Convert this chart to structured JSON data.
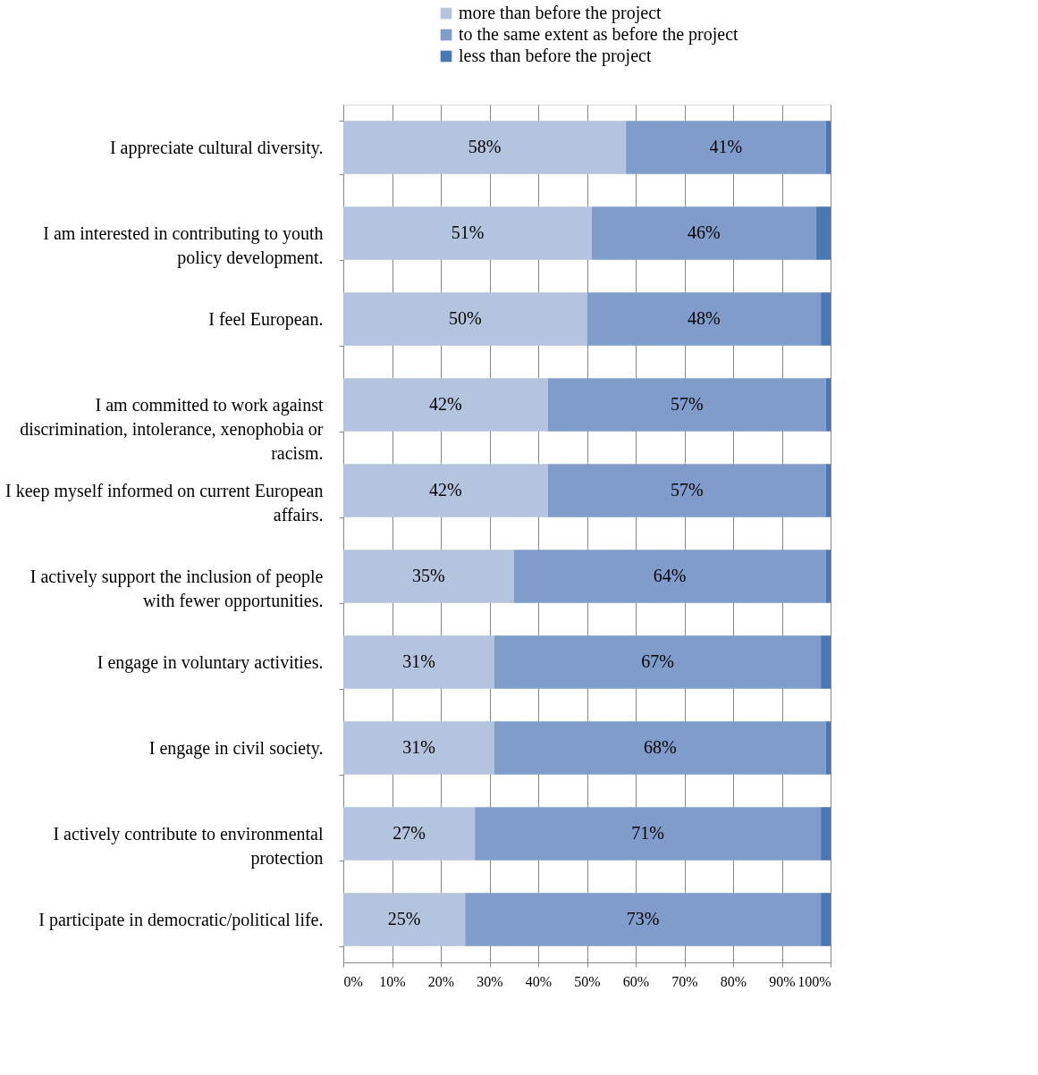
{
  "chart_data": {
    "type": "bar",
    "orientation": "horizontal",
    "stacked": true,
    "categories": [
      "I appreciate cultural diversity.",
      "I am interested in contributing to youth policy development.",
      "I feel European.",
      "I am committed to work against discrimination, intolerance, xenophobia or racism.",
      "I keep myself informed on current European affairs.",
      "I actively support the inclusion of people with fewer opportunities.",
      "I engage in voluntary activities.",
      "I engage in civil society.",
      "I actively contribute to environmental protection",
      "I participate in democratic/political life."
    ],
    "series": [
      {
        "name": "more than before the project",
        "color": "#b4c3de",
        "values": [
          58,
          51,
          50,
          42,
          42,
          35,
          31,
          31,
          27,
          25
        ],
        "value_labels": [
          "58%",
          "51%",
          "50%",
          "42%",
          "42%",
          "35%",
          "31%",
          "31%",
          "27%",
          "25%"
        ]
      },
      {
        "name": "to the same extent as before the project",
        "color": "#7f9ccb",
        "values": [
          41,
          46,
          48,
          57,
          57,
          64,
          67,
          68,
          71,
          73
        ],
        "value_labels": [
          "41%",
          "46%",
          "48%",
          "57%",
          "57%",
          "64%",
          "67%",
          "68%",
          "71%",
          "73%"
        ]
      },
      {
        "name": "less than before the project",
        "color": "#4a78b4",
        "values": [
          1,
          3,
          2,
          1,
          1,
          1,
          2,
          1,
          2,
          2
        ]
      }
    ],
    "xlim": [
      0,
      100
    ],
    "xticks": [
      {
        "value": 0,
        "label": "0%"
      },
      {
        "value": 10,
        "label": "10%"
      },
      {
        "value": 20,
        "label": "20%"
      },
      {
        "value": 30,
        "label": "30%"
      },
      {
        "value": 40,
        "label": "40%"
      },
      {
        "value": 50,
        "label": "50%"
      },
      {
        "value": 60,
        "label": "60%"
      },
      {
        "value": 70,
        "label": "70%"
      },
      {
        "value": 80,
        "label": "80%"
      },
      {
        "value": 90,
        "label": "90%"
      },
      {
        "value": 100,
        "label": "100%"
      }
    ],
    "grid": "x",
    "legend": "top right"
  }
}
